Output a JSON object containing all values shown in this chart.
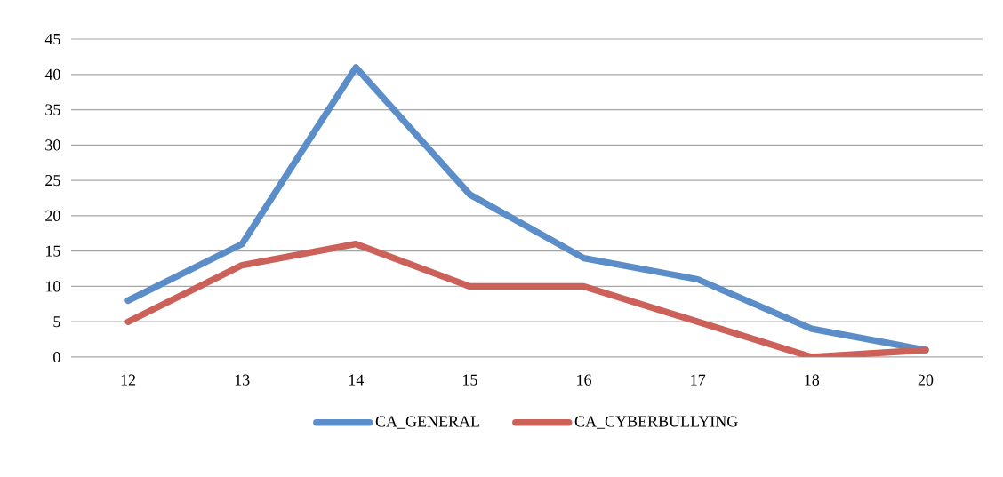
{
  "chart_data": {
    "type": "line",
    "categories": [
      "12",
      "13",
      "14",
      "15",
      "16",
      "17",
      "18",
      "20"
    ],
    "series": [
      {
        "name": "CA_GENERAL",
        "color": "#5b8dc9",
        "values": [
          8,
          16,
          41,
          23,
          14,
          11,
          4,
          1
        ]
      },
      {
        "name": "CA_CYBERBULLYING",
        "color": "#cc6159",
        "values": [
          5,
          13,
          16,
          10,
          10,
          5,
          0,
          1
        ]
      }
    ],
    "ylim": [
      0,
      45
    ],
    "yticks": [
      0,
      5,
      10,
      15,
      20,
      25,
      30,
      35,
      40,
      45
    ],
    "grid": "y",
    "legend": "bottom",
    "marker": "none",
    "line_style": "solid"
  }
}
